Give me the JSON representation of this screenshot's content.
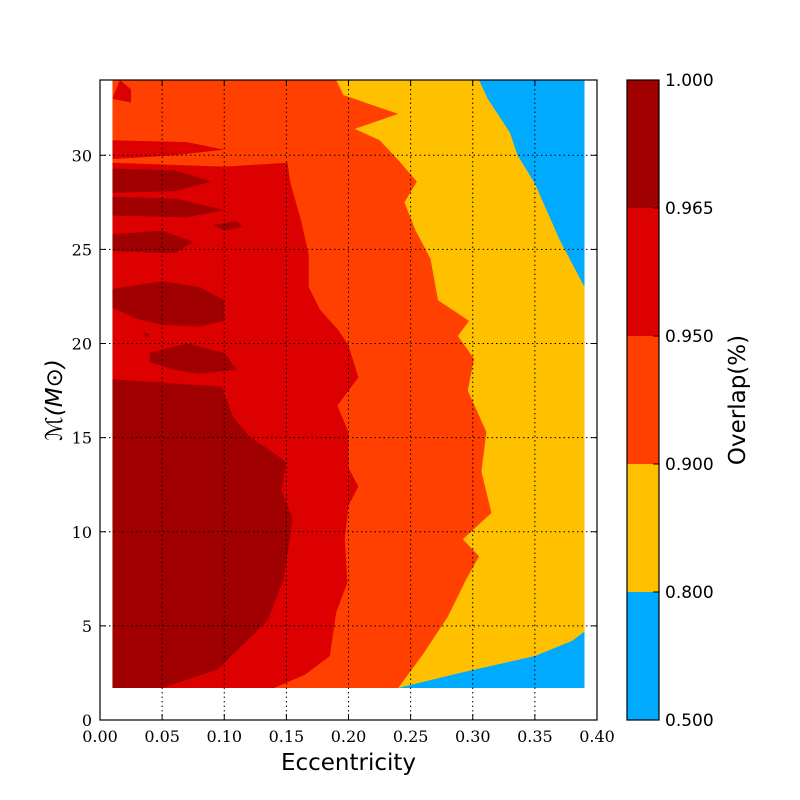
{
  "chart_data": {
    "type": "contourf",
    "title": "",
    "xlabel": "Eccentricity",
    "ylabel": "ℳ(M⊙)",
    "colorbar_label": "Overlap(%)",
    "xlim": [
      0.0,
      0.4
    ],
    "ylim": [
      0,
      34
    ],
    "x_ticks": [
      "0.00",
      "0.05",
      "0.10",
      "0.15",
      "0.20",
      "0.25",
      "0.30",
      "0.35",
      "0.40"
    ],
    "y_ticks": [
      "0",
      "5",
      "10",
      "15",
      "20",
      "25",
      "30"
    ],
    "grid": true,
    "data_extent": {
      "x": [
        0.01,
        0.39
      ],
      "y": [
        1.7,
        34
      ]
    },
    "levels": [
      {
        "range": [
          0.5,
          0.8
        ],
        "label": "0.500",
        "color": "#00aaff"
      },
      {
        "range": [
          0.8,
          0.9
        ],
        "label": "0.800",
        "color": "#ffc000"
      },
      {
        "range": [
          0.9,
          0.95
        ],
        "label": "0.900",
        "color": "#ff4000"
      },
      {
        "range": [
          0.95,
          0.965
        ],
        "label": "0.950",
        "color": "#dd0000"
      },
      {
        "range": [
          0.965,
          1.0
        ],
        "label": "0.965",
        "color": "#a00000"
      }
    ],
    "colorbar_ticks": [
      "0.500",
      "0.800",
      "0.900",
      "0.950",
      "0.965",
      "1.000"
    ],
    "boundaries": {
      "cyan_yellow": [
        [
          0.24,
          1.7
        ],
        [
          0.29,
          2.5
        ],
        [
          0.35,
          3.4
        ],
        [
          0.38,
          4.2
        ],
        [
          0.39,
          4.7
        ],
        [
          0.39,
          23.0
        ],
        [
          0.37,
          25.5
        ],
        [
          0.35,
          28.5
        ],
        [
          0.336,
          30.0
        ],
        [
          0.33,
          31.2
        ],
        [
          0.312,
          33.0
        ],
        [
          0.305,
          34.0
        ]
      ],
      "yellow_orange": [
        [
          0.135,
          1.7
        ],
        [
          0.24,
          1.7
        ],
        [
          0.26,
          3.5
        ],
        [
          0.28,
          5.5
        ],
        [
          0.295,
          7.5
        ],
        [
          0.305,
          8.7
        ],
        [
          0.292,
          9.6
        ],
        [
          0.315,
          11.0
        ],
        [
          0.307,
          13.2
        ],
        [
          0.311,
          15.3
        ],
        [
          0.296,
          17.5
        ],
        [
          0.301,
          19.2
        ],
        [
          0.288,
          20.4
        ],
        [
          0.297,
          21.2
        ],
        [
          0.272,
          22.3
        ],
        [
          0.266,
          24.5
        ],
        [
          0.254,
          26.0
        ],
        [
          0.245,
          27.5
        ],
        [
          0.255,
          28.6
        ],
        [
          0.242,
          29.6
        ],
        [
          0.225,
          30.8
        ],
        [
          0.205,
          31.4
        ],
        [
          0.24,
          32.2
        ],
        [
          0.196,
          33.2
        ],
        [
          0.19,
          34.0
        ]
      ],
      "orange_red": [
        [
          0.075,
          1.7
        ],
        [
          0.14,
          1.7
        ],
        [
          0.165,
          2.4
        ],
        [
          0.185,
          3.4
        ],
        [
          0.19,
          5.7
        ],
        [
          0.199,
          7.3
        ],
        [
          0.197,
          9.6
        ],
        [
          0.2,
          11.4
        ],
        [
          0.208,
          12.4
        ],
        [
          0.2,
          13.4
        ],
        [
          0.2,
          15.3
        ],
        [
          0.191,
          16.7
        ],
        [
          0.208,
          18.2
        ],
        [
          0.2,
          19.9
        ],
        [
          0.192,
          20.7
        ],
        [
          0.177,
          21.8
        ],
        [
          0.168,
          23.0
        ],
        [
          0.168,
          24.7
        ],
        [
          0.162,
          26.5
        ],
        [
          0.153,
          28.6
        ],
        [
          0.151,
          29.6
        ],
        [
          0.1,
          29.4
        ],
        [
          0.01,
          29.6
        ]
      ],
      "red_dark_main": [
        [
          0.05,
          1.7
        ],
        [
          0.095,
          2.7
        ],
        [
          0.135,
          5.3
        ],
        [
          0.148,
          7.5
        ],
        [
          0.155,
          10.7
        ],
        [
          0.146,
          12.2
        ],
        [
          0.15,
          13.7
        ],
        [
          0.12,
          15.1
        ],
        [
          0.107,
          16.1
        ],
        [
          0.098,
          17.7
        ],
        [
          0.01,
          18.1
        ]
      ]
    },
    "islands": [
      {
        "level": "0.950",
        "points": [
          [
            0.01,
            33.0
          ],
          [
            0.016,
            34.0
          ],
          [
            0.025,
            33.5
          ],
          [
            0.025,
            32.8
          ]
        ]
      },
      {
        "level": "0.950",
        "points": [
          [
            0.01,
            30.8
          ],
          [
            0.07,
            30.7
          ],
          [
            0.1,
            30.3
          ],
          [
            0.06,
            30.0
          ],
          [
            0.01,
            29.8
          ]
        ]
      },
      {
        "level": "0.965",
        "points": [
          [
            0.01,
            29.3
          ],
          [
            0.06,
            29.2
          ],
          [
            0.09,
            28.6
          ],
          [
            0.06,
            28.1
          ],
          [
            0.01,
            28.0
          ]
        ]
      },
      {
        "level": "0.965",
        "points": [
          [
            0.01,
            27.8
          ],
          [
            0.06,
            27.7
          ],
          [
            0.1,
            27.1
          ],
          [
            0.07,
            26.7
          ],
          [
            0.01,
            26.8
          ]
        ]
      },
      {
        "level": "0.965",
        "points": [
          [
            0.091,
            26.3
          ],
          [
            0.11,
            26.5
          ],
          [
            0.115,
            26.2
          ],
          [
            0.1,
            26.0
          ]
        ]
      },
      {
        "level": "0.965",
        "points": [
          [
            0.01,
            25.8
          ],
          [
            0.05,
            26.0
          ],
          [
            0.075,
            25.4
          ],
          [
            0.06,
            24.8
          ],
          [
            0.01,
            24.9
          ]
        ]
      },
      {
        "level": "0.965",
        "points": [
          [
            0.01,
            22.9
          ],
          [
            0.05,
            23.3
          ],
          [
            0.08,
            23.0
          ],
          [
            0.1,
            22.3
          ],
          [
            0.1,
            21.2
          ],
          [
            0.08,
            20.9
          ],
          [
            0.05,
            21.0
          ],
          [
            0.03,
            21.3
          ],
          [
            0.01,
            21.9
          ]
        ]
      },
      {
        "level": "0.965",
        "points": [
          [
            0.035,
            20.6
          ],
          [
            0.04,
            20.5
          ],
          [
            0.037,
            20.3
          ]
        ]
      },
      {
        "level": "0.965",
        "points": [
          [
            0.04,
            19.5
          ],
          [
            0.07,
            20.0
          ],
          [
            0.1,
            19.5
          ],
          [
            0.11,
            18.6
          ],
          [
            0.08,
            18.4
          ],
          [
            0.06,
            18.6
          ],
          [
            0.04,
            19.0
          ]
        ]
      }
    ]
  }
}
